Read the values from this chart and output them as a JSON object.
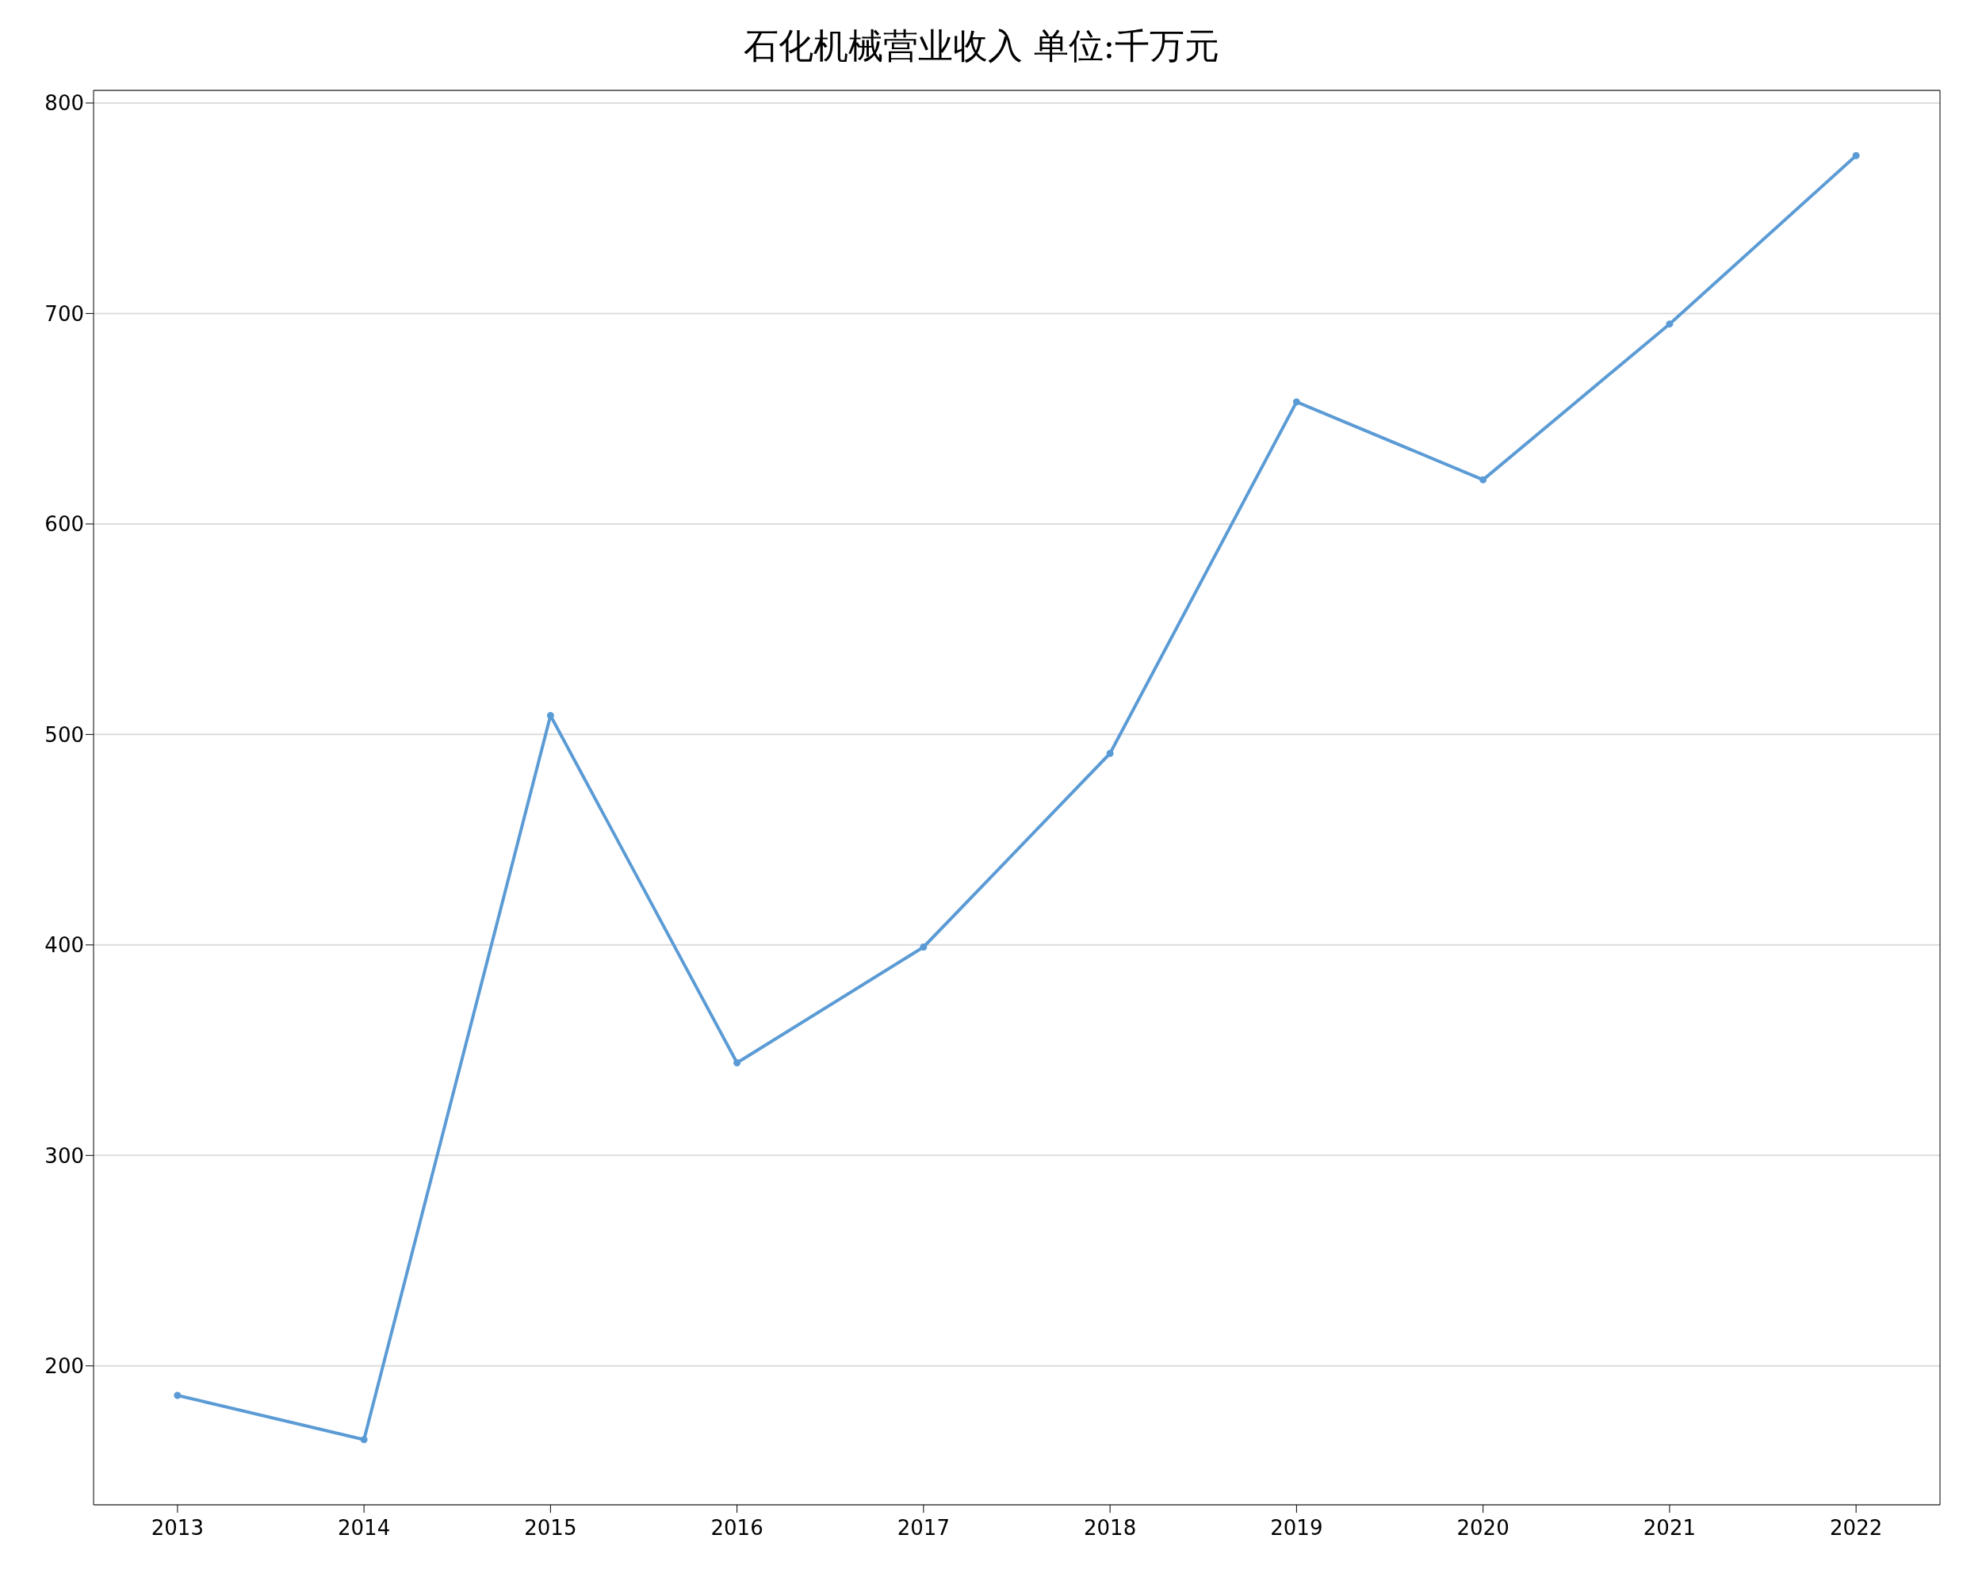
{
  "chart_data": {
    "type": "line",
    "title": "石化机械营业收入 单位:千万元",
    "x": [
      2013,
      2014,
      2015,
      2016,
      2017,
      2018,
      2019,
      2020,
      2021,
      2022
    ],
    "series": [
      {
        "color": "#5b9bd5",
        "values": [
          186,
          165,
          509,
          344,
          399,
          491,
          658,
          621,
          695,
          775
        ]
      }
    ],
    "xlim": [
      2012.55,
      2022.45
    ],
    "xticks": [
      2013,
      2014,
      2015,
      2016,
      2017,
      2018,
      2019,
      2020,
      2021,
      2022
    ],
    "ylim": [
      134,
      806
    ],
    "yticks": [
      200,
      300,
      400,
      500,
      600,
      700,
      800
    ],
    "grid": "y",
    "marker": "circle",
    "line_style": "solid"
  }
}
